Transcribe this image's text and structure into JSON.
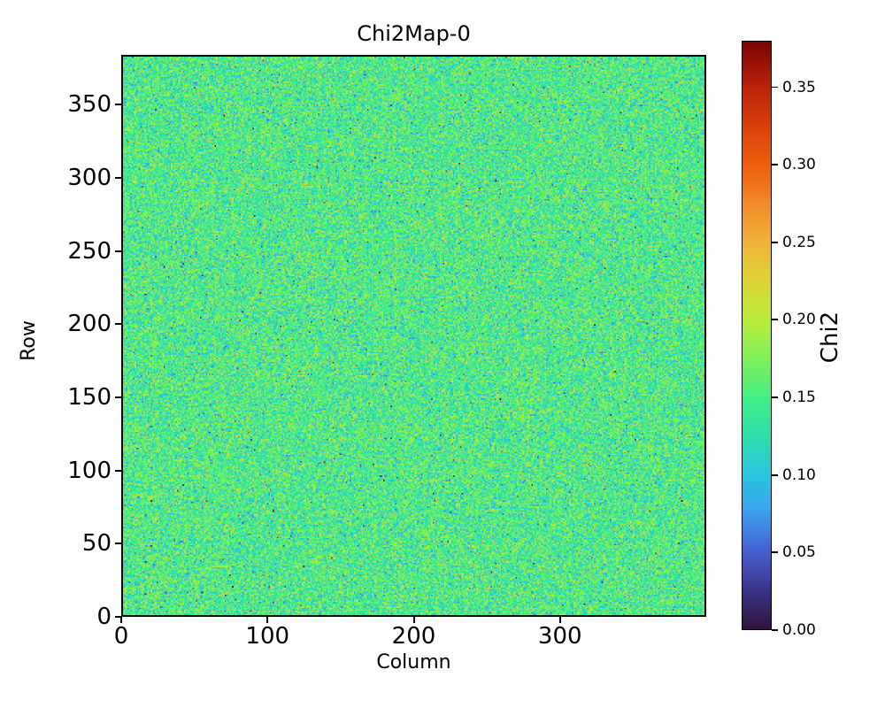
{
  "figure": {
    "background": "#ffffff",
    "text_color": "#000000"
  },
  "chart_data": {
    "type": "heatmap",
    "title": "Chi2Map-0",
    "xlabel": "Column",
    "ylabel": "Row",
    "x_range": [
      0,
      400
    ],
    "y_range": [
      0,
      384
    ],
    "grid_cols": 400,
    "grid_rows": 384,
    "x_tick_values": [
      0,
      100,
      200,
      300
    ],
    "x_tick_labels": [
      "0",
      "100",
      "200",
      "300"
    ],
    "y_tick_values": [
      0,
      50,
      100,
      150,
      200,
      250,
      300,
      350
    ],
    "y_tick_labels": [
      "0",
      "50",
      "100",
      "150",
      "200",
      "250",
      "300",
      "350"
    ],
    "grid": false,
    "legend": "none",
    "colorbar": {
      "label": "Chi2",
      "min": 0.0,
      "max": 0.38,
      "tick_values": [
        0.0,
        0.05,
        0.1,
        0.15,
        0.2,
        0.25,
        0.3,
        0.35
      ],
      "tick_labels": [
        "0.00",
        "0.05",
        "0.10",
        "0.15",
        "0.20",
        "0.25",
        "0.30",
        "0.35"
      ],
      "colormap": "turbo",
      "color_stops": [
        {
          "v": 0.0,
          "color": "#30123b"
        },
        {
          "v": 0.025,
          "color": "#3b3386"
        },
        {
          "v": 0.05,
          "color": "#455ed1"
        },
        {
          "v": 0.075,
          "color": "#3b9ff0"
        },
        {
          "v": 0.1,
          "color": "#29c5dd"
        },
        {
          "v": 0.125,
          "color": "#2ee0ad"
        },
        {
          "v": 0.15,
          "color": "#44ee85"
        },
        {
          "v": 0.175,
          "color": "#7ef058"
        },
        {
          "v": 0.2,
          "color": "#b8ec3c"
        },
        {
          "v": 0.225,
          "color": "#dcd335"
        },
        {
          "v": 0.25,
          "color": "#f2b33c"
        },
        {
          "v": 0.275,
          "color": "#f28a28"
        },
        {
          "v": 0.3,
          "color": "#ed5f0d"
        },
        {
          "v": 0.325,
          "color": "#d8410a"
        },
        {
          "v": 0.35,
          "color": "#bb2309"
        },
        {
          "v": 0.38,
          "color": "#7a0403"
        }
      ]
    },
    "values_summary": {
      "description": "per-pixel chi2 noise map, roughly gaussian around 0.15 with rare dark and hot outlier pixels",
      "mean": 0.148,
      "std": 0.033,
      "dark_outlier_fraction": 0.0008,
      "hot_outlier_fraction": 0.001,
      "clip": [
        0.002,
        0.379
      ],
      "seed": 42
    }
  }
}
